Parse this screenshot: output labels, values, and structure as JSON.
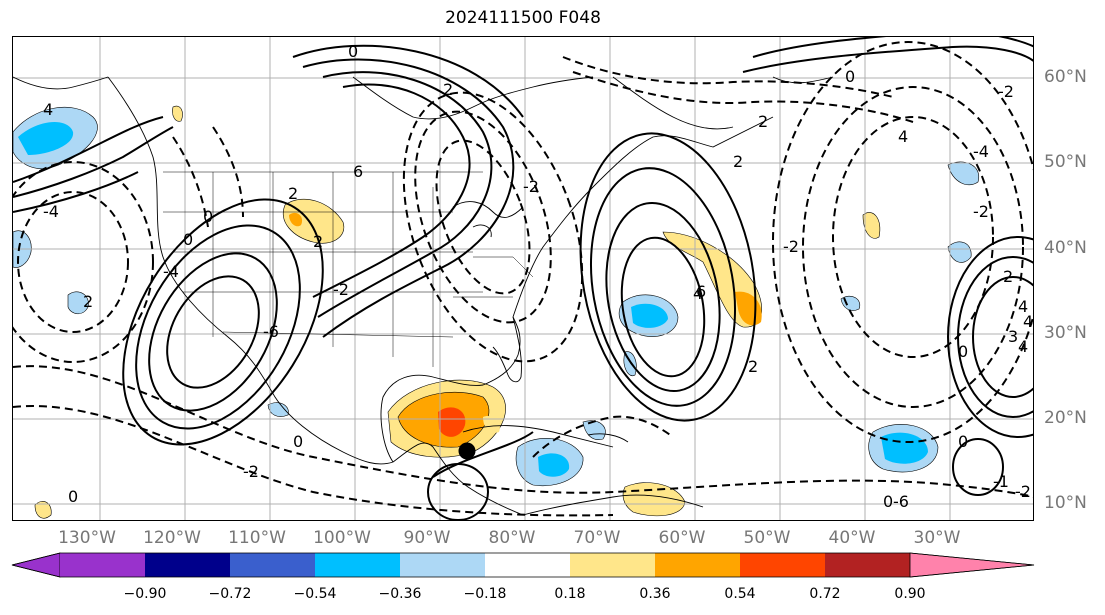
{
  "title": "2024111500 F048",
  "lon_labels": [
    "130°W",
    "120°W",
    "110°W",
    "100°W",
    "90°W",
    "80°W",
    "70°W",
    "60°W",
    "50°W",
    "40°W",
    "30°W"
  ],
  "lat_labels": [
    "60°N",
    "50°N",
    "40°N",
    "30°N",
    "20°N",
    "10°N"
  ],
  "colorbar": {
    "labels": [
      "−0.90",
      "−0.72",
      "−0.54",
      "−0.36",
      "−0.18",
      "0.18",
      "0.36",
      "0.54",
      "0.72",
      "0.90"
    ],
    "colors": [
      "#9932cc",
      "#00008b",
      "#3a5fcd",
      "#00bfff",
      "#add8f5",
      "#ffffff",
      "#ffe68a",
      "#ffa500",
      "#ff4500",
      "#b22222",
      "#ff82ab"
    ]
  },
  "contour_labels": [
    "0",
    "2",
    "4",
    "6",
    "-2",
    "-4",
    "-6",
    "2",
    "0",
    "-2",
    "-4",
    "2",
    "4",
    "-2",
    "0",
    "2",
    "-2",
    "4",
    "2",
    "0",
    "0",
    "-2",
    "-6",
    "-4",
    "2",
    "2",
    "4",
    "-2",
    "0",
    "0",
    "-1",
    "-2",
    "6",
    "4",
    "2",
    "4",
    "3",
    "0",
    "0"
  ],
  "marker": {
    "lon": -86.5,
    "lat": 16.5
  }
}
